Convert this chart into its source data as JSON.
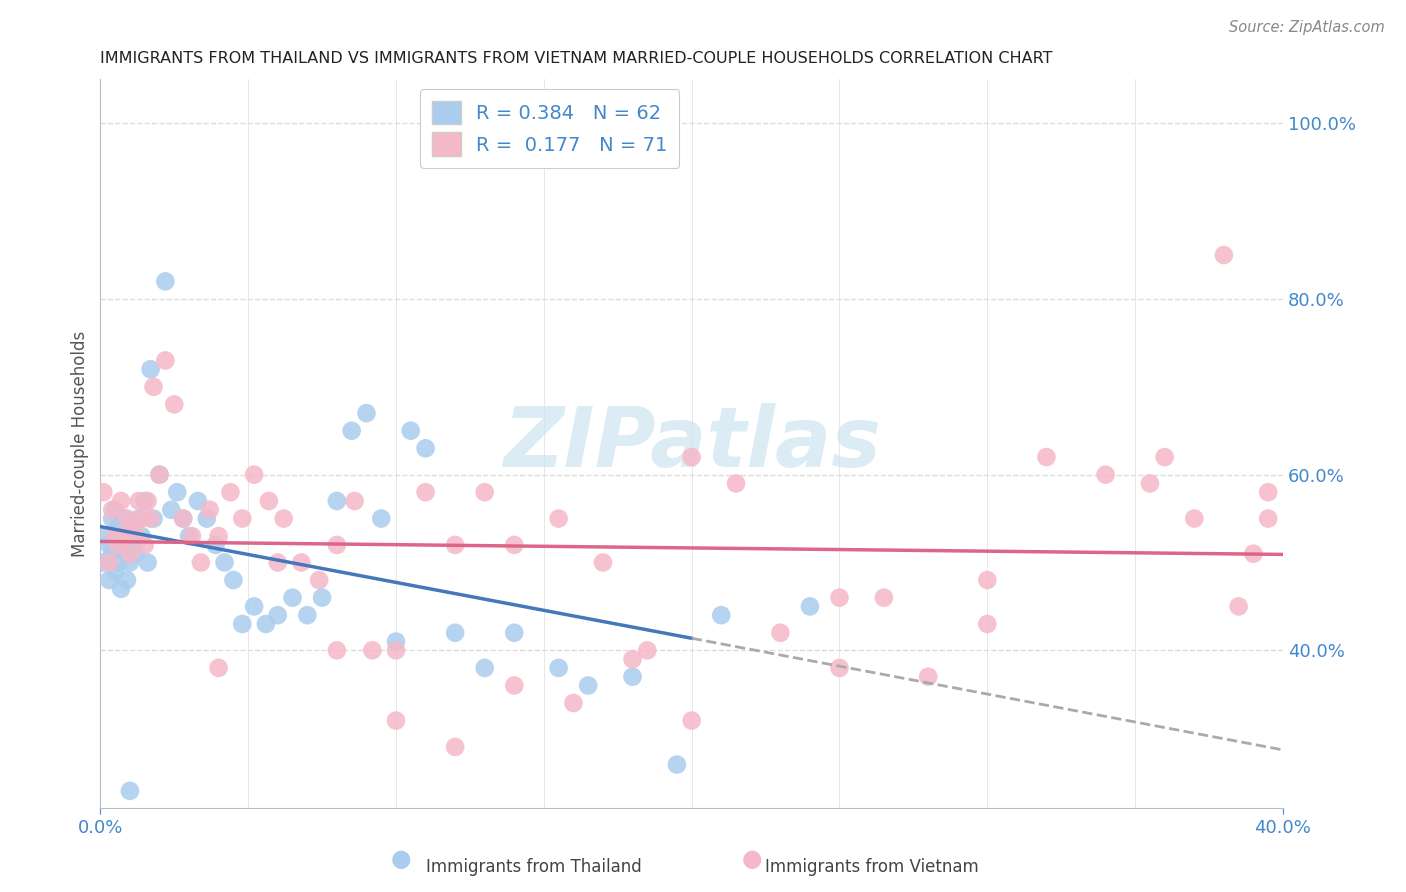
{
  "title": "IMMIGRANTS FROM THAILAND VS IMMIGRANTS FROM VIETNAM MARRIED-COUPLE HOUSEHOLDS CORRELATION CHART",
  "source": "Source: ZipAtlas.com",
  "ylabel": "Married-couple Households",
  "legend_labels": [
    "Immigrants from Thailand",
    "Immigrants from Vietnam"
  ],
  "r_thailand": 0.384,
  "n_thailand": 62,
  "r_vietnam": 0.177,
  "n_vietnam": 71,
  "xlim": [
    0.0,
    0.4
  ],
  "ylim": [
    0.22,
    1.05
  ],
  "yticks": [
    0.4,
    0.6,
    0.8,
    1.0
  ],
  "ytick_labels": [
    "40.0%",
    "60.0%",
    "80.0%",
    "100.0%"
  ],
  "xtick_labels": [
    "0.0%",
    "40.0%"
  ],
  "blue_color": "#aaccee",
  "pink_color": "#f5b8c8",
  "line_blue": "#4477bb",
  "line_pink": "#dd6688",
  "line_dashed": "#aaaaaa",
  "background_color": "#ffffff",
  "grid_color": "#dddddd",
  "title_color": "#222222",
  "axis_label_color": "#4488cc",
  "watermark_color": "#cce4f0",
  "thailand_x": [
    0.001,
    0.002,
    0.003,
    0.003,
    0.004,
    0.004,
    0.005,
    0.005,
    0.006,
    0.006,
    0.007,
    0.007,
    0.008,
    0.008,
    0.009,
    0.009,
    0.01,
    0.01,
    0.011,
    0.011,
    0.012,
    0.013,
    0.014,
    0.015,
    0.016,
    0.017,
    0.018,
    0.02,
    0.022,
    0.024,
    0.026,
    0.028,
    0.03,
    0.033,
    0.036,
    0.039,
    0.042,
    0.045,
    0.048,
    0.052,
    0.056,
    0.06,
    0.065,
    0.07,
    0.075,
    0.08,
    0.085,
    0.09,
    0.095,
    0.1,
    0.105,
    0.11,
    0.12,
    0.13,
    0.14,
    0.155,
    0.165,
    0.18,
    0.195,
    0.21,
    0.24,
    0.01
  ],
  "thailand_y": [
    0.5,
    0.53,
    0.52,
    0.48,
    0.55,
    0.51,
    0.56,
    0.49,
    0.54,
    0.5,
    0.53,
    0.47,
    0.52,
    0.55,
    0.51,
    0.48,
    0.53,
    0.5,
    0.54,
    0.52,
    0.51,
    0.55,
    0.53,
    0.57,
    0.5,
    0.72,
    0.55,
    0.6,
    0.82,
    0.56,
    0.58,
    0.55,
    0.53,
    0.57,
    0.55,
    0.52,
    0.5,
    0.48,
    0.43,
    0.45,
    0.43,
    0.44,
    0.46,
    0.44,
    0.46,
    0.57,
    0.65,
    0.67,
    0.55,
    0.41,
    0.65,
    0.63,
    0.42,
    0.38,
    0.42,
    0.38,
    0.36,
    0.37,
    0.27,
    0.44,
    0.45,
    0.24
  ],
  "vietnam_x": [
    0.001,
    0.003,
    0.004,
    0.005,
    0.006,
    0.007,
    0.008,
    0.009,
    0.01,
    0.011,
    0.012,
    0.013,
    0.014,
    0.015,
    0.016,
    0.017,
    0.018,
    0.02,
    0.022,
    0.025,
    0.028,
    0.031,
    0.034,
    0.037,
    0.04,
    0.044,
    0.048,
    0.052,
    0.057,
    0.062,
    0.068,
    0.074,
    0.08,
    0.086,
    0.092,
    0.1,
    0.11,
    0.12,
    0.13,
    0.14,
    0.155,
    0.17,
    0.185,
    0.2,
    0.215,
    0.23,
    0.25,
    0.265,
    0.28,
    0.3,
    0.32,
    0.34,
    0.355,
    0.37,
    0.385,
    0.395,
    0.395,
    0.39,
    0.38,
    0.36,
    0.3,
    0.25,
    0.2,
    0.18,
    0.16,
    0.14,
    0.12,
    0.1,
    0.08,
    0.06,
    0.04
  ],
  "vietnam_y": [
    0.58,
    0.5,
    0.56,
    0.53,
    0.52,
    0.57,
    0.53,
    0.55,
    0.51,
    0.54,
    0.53,
    0.57,
    0.55,
    0.52,
    0.57,
    0.55,
    0.7,
    0.6,
    0.73,
    0.68,
    0.55,
    0.53,
    0.5,
    0.56,
    0.53,
    0.58,
    0.55,
    0.6,
    0.57,
    0.55,
    0.5,
    0.48,
    0.52,
    0.57,
    0.4,
    0.4,
    0.58,
    0.52,
    0.58,
    0.52,
    0.55,
    0.5,
    0.4,
    0.62,
    0.59,
    0.42,
    0.38,
    0.46,
    0.37,
    0.43,
    0.62,
    0.6,
    0.59,
    0.55,
    0.45,
    0.58,
    0.55,
    0.51,
    0.85,
    0.62,
    0.48,
    0.46,
    0.32,
    0.39,
    0.34,
    0.36,
    0.29,
    0.32,
    0.4,
    0.5,
    0.38
  ]
}
